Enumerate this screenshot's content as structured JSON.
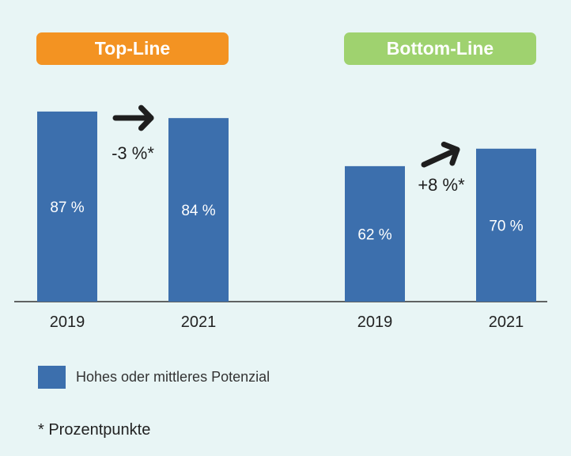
{
  "colors": {
    "background": "#e8f5f5",
    "bar": "#3c6fad",
    "top_line": "#f39322",
    "bottom_line": "#9fd26f",
    "arrow": "#1e1e1e"
  },
  "legend": {
    "label": "Hohes oder mittleres Potenzial"
  },
  "footnote": "* Prozentpunkte",
  "chart_data": [
    {
      "type": "bar",
      "title": "Top-Line",
      "categories": [
        "2019",
        "2021"
      ],
      "values": [
        87,
        84
      ],
      "value_labels": [
        "87 %",
        "84 %"
      ],
      "change_label": "-3 %*",
      "series": [
        {
          "name": "Hohes oder mittleres Potenzial",
          "values": [
            87,
            84
          ]
        }
      ],
      "ylim": [
        0,
        100
      ],
      "grid": false,
      "legend_position": "bottom-left"
    },
    {
      "type": "bar",
      "title": "Bottom-Line",
      "categories": [
        "2019",
        "2021"
      ],
      "values": [
        62,
        70
      ],
      "value_labels": [
        "62 %",
        "70 %"
      ],
      "change_label": "+8 %*",
      "series": [
        {
          "name": "Hohes oder mittleres Potenzial",
          "values": [
            62,
            70
          ]
        }
      ],
      "ylim": [
        0,
        100
      ],
      "grid": false,
      "legend_position": "bottom-left"
    }
  ]
}
